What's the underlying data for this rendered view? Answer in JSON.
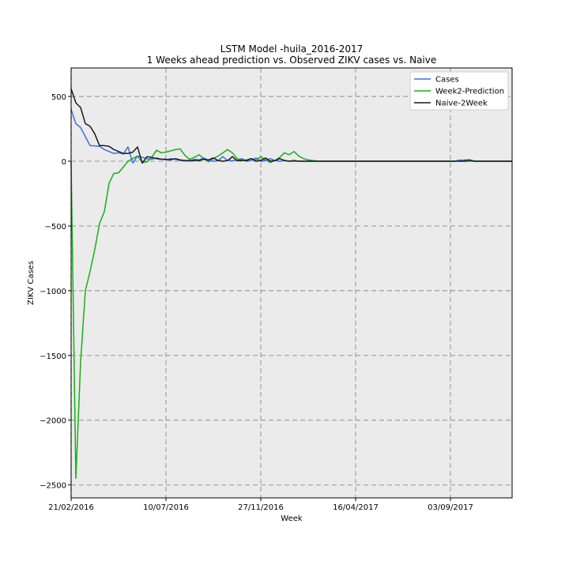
{
  "chart_data": {
    "type": "line",
    "title": "LSTM Model -huila_2016-2017",
    "subtitle": "1 Weeks ahead prediction vs. Observed ZIKV cases vs. Naive",
    "xlabel": "Week",
    "ylabel": "ZIKV Cases",
    "ylim": [
      -2600,
      720
    ],
    "yticks": [
      500,
      0,
      -500,
      -1000,
      -1500,
      -2000,
      -2500
    ],
    "ytick_labels": [
      "500",
      "0",
      "−500",
      "−1000",
      "−1500",
      "−2000",
      "−2500"
    ],
    "xlim": [
      0,
      93
    ],
    "xticks": [
      0,
      20,
      40,
      60,
      80
    ],
    "xtick_labels": [
      "21/02/2016",
      "10/07/2016",
      "27/11/2016",
      "16/04/2017",
      "03/09/2017"
    ],
    "grid": true,
    "legend_position": "top-right",
    "background": "#ebebeb",
    "series": [
      {
        "name": "Cases",
        "color": "#3b6fe0",
        "x": [
          0,
          1,
          2,
          3,
          4,
          5,
          6,
          7,
          8,
          9,
          10,
          11,
          12,
          13,
          14,
          15,
          16,
          17,
          18,
          19,
          20,
          21,
          22,
          23,
          24,
          25,
          26,
          27,
          28,
          29,
          30,
          31,
          32,
          33,
          34,
          35,
          36,
          37,
          38,
          39,
          40,
          41,
          42,
          43,
          44,
          45,
          46,
          47,
          48,
          49,
          50,
          51,
          52,
          53,
          54,
          55,
          56,
          57,
          58,
          59,
          60,
          61,
          62,
          63,
          64,
          65,
          66,
          67,
          68,
          69,
          70,
          71,
          72,
          73,
          74,
          75,
          76,
          77,
          78,
          79,
          80,
          81,
          82,
          83,
          84,
          85,
          86,
          87,
          88,
          89,
          90,
          91,
          92,
          93
        ],
        "values": [
          400,
          290,
          260,
          190,
          120,
          118,
          115,
          90,
          75,
          60,
          65,
          55,
          110,
          -15,
          40,
          30,
          20,
          15,
          25,
          15,
          10,
          20,
          15,
          5,
          5,
          0,
          15,
          10,
          25,
          5,
          0,
          5,
          35,
          5,
          5,
          5,
          20,
          0,
          5,
          25,
          0,
          5,
          20,
          5,
          0,
          5,
          0,
          0,
          0,
          0,
          0,
          0,
          0,
          0,
          0,
          0,
          0,
          0,
          0,
          0,
          0,
          0,
          0,
          0,
          0,
          0,
          0,
          0,
          0,
          0,
          0,
          0,
          0,
          0,
          0,
          0,
          0,
          0,
          0,
          0,
          0,
          0,
          10,
          0,
          0,
          0,
          0,
          0,
          0,
          0,
          0,
          0,
          0,
          0
        ]
      },
      {
        "name": "Week2-Prediction",
        "color": "#18b018",
        "x": [
          0,
          1,
          2,
          3,
          4,
          5,
          6,
          7,
          8,
          9,
          10,
          11,
          12,
          13,
          14,
          15,
          16,
          17,
          18,
          19,
          20,
          21,
          22,
          23,
          24,
          25,
          26,
          27,
          28,
          29,
          30,
          31,
          32,
          33,
          34,
          35,
          36,
          37,
          38,
          39,
          40,
          41,
          42,
          43,
          44,
          45,
          46,
          47,
          48,
          49,
          50,
          51,
          52,
          53,
          54,
          55,
          56,
          57,
          58,
          59,
          60,
          61,
          62,
          63,
          64,
          65,
          66,
          67,
          68,
          69,
          70,
          71,
          72,
          73,
          74,
          75,
          76,
          77,
          78,
          79,
          80,
          81,
          82,
          83,
          84,
          85,
          86,
          87,
          88,
          89,
          90,
          91,
          92,
          93
        ],
        "values": [
          0,
          -2450,
          -1550,
          -1000,
          -850,
          -680,
          -480,
          -390,
          -170,
          -95,
          -90,
          -45,
          0,
          20,
          40,
          -10,
          -5,
          30,
          85,
          65,
          70,
          80,
          90,
          95,
          45,
          15,
          30,
          50,
          20,
          -5,
          20,
          40,
          65,
          90,
          65,
          20,
          10,
          10,
          20,
          10,
          35,
          10,
          -10,
          5,
          30,
          65,
          50,
          75,
          40,
          20,
          10,
          5,
          0,
          0,
          0,
          0,
          0,
          0,
          0,
          0,
          0,
          0,
          0,
          0,
          0,
          0,
          0,
          0,
          0,
          0,
          0,
          0,
          0,
          0,
          0,
          0,
          0,
          0,
          0,
          0,
          0,
          0,
          5,
          10,
          10,
          0,
          0,
          0,
          0,
          0,
          0,
          0,
          0,
          0
        ]
      },
      {
        "name": "Naive-2Week",
        "color": "#1a1a1a",
        "x": [
          0,
          1,
          2,
          3,
          4,
          5,
          6,
          7,
          8,
          9,
          10,
          11,
          12,
          13,
          14,
          15,
          16,
          17,
          18,
          19,
          20,
          21,
          22,
          23,
          24,
          25,
          26,
          27,
          28,
          29,
          30,
          31,
          32,
          33,
          34,
          35,
          36,
          37,
          38,
          39,
          40,
          41,
          42,
          43,
          44,
          45,
          46,
          47,
          48,
          49,
          50,
          51,
          52,
          53,
          54,
          55,
          56,
          57,
          58,
          59,
          60,
          61,
          62,
          63,
          64,
          65,
          66,
          67,
          68,
          69,
          70,
          71,
          72,
          73,
          74,
          75,
          76,
          77,
          78,
          79,
          80,
          81,
          82,
          83,
          84,
          85,
          86,
          87,
          88,
          89,
          90,
          91,
          92,
          93
        ],
        "values": [
          560,
          450,
          415,
          290,
          270,
          210,
          120,
          120,
          115,
          90,
          75,
          60,
          60,
          70,
          110,
          -15,
          35,
          30,
          20,
          15,
          15,
          10,
          20,
          10,
          5,
          5,
          5,
          5,
          15,
          10,
          25,
          5,
          0,
          5,
          35,
          5,
          5,
          5,
          20,
          0,
          5,
          25,
          0,
          5,
          20,
          5,
          0,
          5,
          0,
          0,
          0,
          0,
          0,
          0,
          0,
          0,
          0,
          0,
          0,
          0,
          0,
          0,
          0,
          0,
          0,
          0,
          0,
          0,
          0,
          0,
          0,
          0,
          0,
          0,
          0,
          0,
          0,
          0,
          0,
          0,
          0,
          0,
          0,
          0,
          10,
          0,
          0,
          0,
          0,
          0,
          0,
          0,
          0,
          0
        ]
      }
    ]
  }
}
